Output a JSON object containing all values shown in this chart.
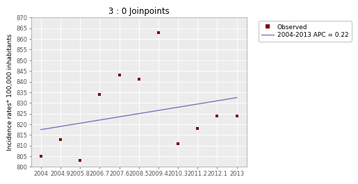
{
  "title": "3 : 0 Joinpoints",
  "ylabel": "Incidence rates* 100,000 inhabitants",
  "x_observed": [
    2004,
    2004.9,
    2005.8,
    2006.7,
    2007.6,
    2008.5,
    2009.4,
    2010.3,
    2011.2,
    2012.1,
    2013
  ],
  "y_observed": [
    805,
    813,
    803,
    834,
    843,
    841,
    863,
    811,
    818,
    824,
    824
  ],
  "trend_x": [
    2004,
    2013
  ],
  "trend_y": [
    817.5,
    832.5
  ],
  "ylim": [
    800,
    870
  ],
  "yticks": [
    800,
    805,
    810,
    815,
    820,
    825,
    830,
    835,
    840,
    845,
    850,
    855,
    860,
    865,
    870
  ],
  "xticks": [
    2004,
    2004.9,
    2005.8,
    2006.7,
    2007.6,
    2008.5,
    2009.4,
    2010.3,
    2011.2,
    2012.1,
    2013
  ],
  "xlim": [
    2003.55,
    2013.45
  ],
  "marker_color": "#7B0000",
  "line_color": "#7777BB",
  "bg_color": "#ECECEC",
  "grid_color": "#FFFFFF",
  "legend_observed": "Observed",
  "legend_trend": "2004-2013 APC = 0.22",
  "title_fontsize": 8.5,
  "ylabel_fontsize": 6.5,
  "tick_fontsize": 6,
  "legend_fontsize": 6.5
}
